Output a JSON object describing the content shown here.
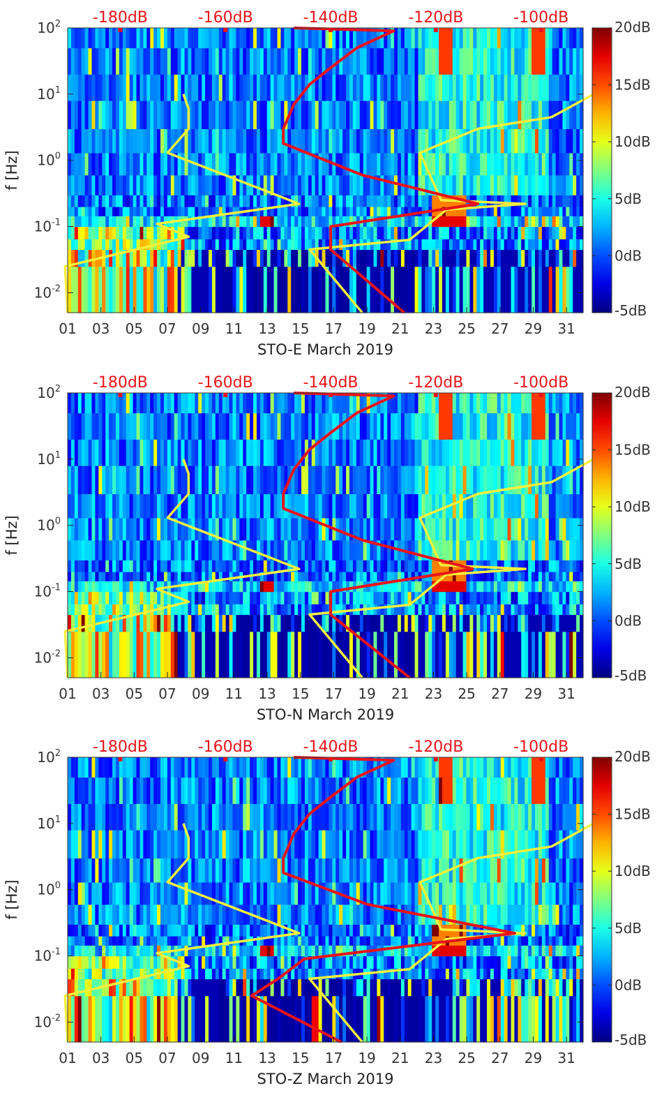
{
  "figure_title": "",
  "chart_data": [
    {
      "type": "heatmap",
      "component": "STO-E",
      "xlabel": "STO-E March 2019",
      "ylabel": "f [Hz]",
      "x_ticks": [
        "01",
        "03",
        "05",
        "07",
        "09",
        "11",
        "13",
        "15",
        "17",
        "19",
        "21",
        "23",
        "25",
        "27",
        "29",
        "31"
      ],
      "x_range_day": [
        1,
        32
      ],
      "y_scale": "log",
      "y_range_hz": [
        0.005,
        100
      ],
      "y_ticks": [
        {
          "base": "10",
          "exp": "2"
        },
        {
          "base": "10",
          "exp": "1"
        },
        {
          "base": "10",
          "exp": "0"
        },
        {
          "base": "10",
          "exp": "-1"
        },
        {
          "base": "10",
          "exp": "-2"
        }
      ],
      "top_axis_labels": [
        "-180dB",
        "-160dB",
        "-140dB",
        "-120dB",
        "-100dB"
      ],
      "top_axis_range_db": [
        -190,
        -92
      ],
      "colorbar_ticks": [
        "20dB",
        "15dB",
        "10dB",
        "5dB",
        "0dB",
        "-5dB"
      ],
      "colorbar_range_db": [
        -5,
        20
      ],
      "curves": [
        {
          "name": "yellow-noise-model",
          "color": "#f5f03c",
          "points_db_hz": [
            [
              -190,
              0.005
            ],
            [
              -190.5,
              0.025
            ],
            [
              -177,
              0.045
            ],
            [
              -167,
              0.07
            ],
            [
              -173,
              0.11
            ],
            [
              -146,
              0.22
            ],
            [
              -171,
              1.3
            ],
            [
              -167,
              3
            ],
            [
              -167,
              6
            ],
            [
              -168,
              10
            ]
          ]
        },
        {
          "name": "yellow-noise-model",
          "color": "#f5f03c",
          "points_db_hz": [
            [
              -134,
              0.005
            ],
            [
              -144,
              0.045
            ],
            [
              -125,
              0.063
            ],
            [
              -118,
              0.18
            ],
            [
              -110,
              0.2
            ],
            [
              -103,
              0.22
            ],
            [
              -119,
              0.25
            ],
            [
              -123,
              1.3
            ],
            [
              -112,
              3
            ],
            [
              -98,
              4.5
            ],
            [
              -90,
              10
            ]
          ]
        },
        {
          "name": "red-psd-curve",
          "color": "#e8141a",
          "points_db_hz": [
            [
              -126,
              0.005
            ],
            [
              -140,
              0.045
            ],
            [
              -140,
              0.1
            ],
            [
              -112,
              0.22
            ],
            [
              -134,
              0.6
            ],
            [
              -149,
              1.8
            ],
            [
              -149,
              3
            ],
            [
              -147,
              7
            ],
            [
              -144,
              14
            ],
            [
              -140,
              25
            ],
            [
              -135,
              50
            ],
            [
              -128,
              90
            ],
            [
              -147,
              100
            ]
          ]
        }
      ]
    },
    {
      "type": "heatmap",
      "component": "STO-N",
      "xlabel": "STO-N March 2019",
      "ylabel": "f [Hz]",
      "x_ticks": [
        "01",
        "03",
        "05",
        "07",
        "09",
        "11",
        "13",
        "15",
        "17",
        "19",
        "21",
        "23",
        "25",
        "27",
        "29",
        "31"
      ],
      "x_range_day": [
        1,
        32
      ],
      "y_scale": "log",
      "y_range_hz": [
        0.005,
        100
      ],
      "y_ticks": [
        {
          "base": "10",
          "exp": "2"
        },
        {
          "base": "10",
          "exp": "1"
        },
        {
          "base": "10",
          "exp": "0"
        },
        {
          "base": "10",
          "exp": "-1"
        },
        {
          "base": "10",
          "exp": "-2"
        }
      ],
      "top_axis_labels": [
        "-180dB",
        "-160dB",
        "-140dB",
        "-120dB",
        "-100dB"
      ],
      "top_axis_range_db": [
        -190,
        -92
      ],
      "colorbar_ticks": [
        "20dB",
        "15dB",
        "10dB",
        "5dB",
        "0dB",
        "-5dB"
      ],
      "colorbar_range_db": [
        -5,
        20
      ],
      "curves": [
        {
          "name": "yellow-noise-model",
          "color": "#f5f03c",
          "points_db_hz": [
            [
              -190,
              0.005
            ],
            [
              -190.5,
              0.025
            ],
            [
              -177,
              0.045
            ],
            [
              -167,
              0.07
            ],
            [
              -173,
              0.11
            ],
            [
              -146,
              0.22
            ],
            [
              -171,
              1.3
            ],
            [
              -167,
              3
            ],
            [
              -167,
              6
            ],
            [
              -168,
              10
            ]
          ]
        },
        {
          "name": "yellow-noise-model",
          "color": "#f5f03c",
          "points_db_hz": [
            [
              -134,
              0.005
            ],
            [
              -144,
              0.045
            ],
            [
              -125,
              0.063
            ],
            [
              -118,
              0.18
            ],
            [
              -110,
              0.2
            ],
            [
              -103,
              0.22
            ],
            [
              -119,
              0.25
            ],
            [
              -123,
              1.3
            ],
            [
              -112,
              3
            ],
            [
              -98,
              4.5
            ],
            [
              -90,
              10
            ]
          ]
        },
        {
          "name": "red-psd-curve",
          "color": "#e8141a",
          "points_db_hz": [
            [
              -125,
              0.005
            ],
            [
              -140,
              0.045
            ],
            [
              -140,
              0.1
            ],
            [
              -113,
              0.22
            ],
            [
              -134,
              0.6
            ],
            [
              -149,
              1.8
            ],
            [
              -149,
              3
            ],
            [
              -147,
              7
            ],
            [
              -144,
              14
            ],
            [
              -140,
              25
            ],
            [
              -135,
              50
            ],
            [
              -128,
              90
            ],
            [
              -147,
              100
            ]
          ]
        }
      ]
    },
    {
      "type": "heatmap",
      "component": "STO-Z",
      "xlabel": "STO-Z March 2019",
      "ylabel": "f [Hz]",
      "x_ticks": [
        "01",
        "03",
        "05",
        "07",
        "09",
        "11",
        "13",
        "15",
        "17",
        "19",
        "21",
        "23",
        "25",
        "27",
        "29",
        "31"
      ],
      "x_range_day": [
        1,
        32
      ],
      "y_scale": "log",
      "y_range_hz": [
        0.005,
        100
      ],
      "y_ticks": [
        {
          "base": "10",
          "exp": "2"
        },
        {
          "base": "10",
          "exp": "1"
        },
        {
          "base": "10",
          "exp": "0"
        },
        {
          "base": "10",
          "exp": "-1"
        },
        {
          "base": "10",
          "exp": "-2"
        }
      ],
      "top_axis_labels": [
        "-180dB",
        "-160dB",
        "-140dB",
        "-120dB",
        "-100dB"
      ],
      "top_axis_range_db": [
        -190,
        -92
      ],
      "colorbar_ticks": [
        "20dB",
        "15dB",
        "10dB",
        "5dB",
        "0dB",
        "-5dB"
      ],
      "colorbar_range_db": [
        -5,
        20
      ],
      "curves": [
        {
          "name": "yellow-noise-model",
          "color": "#f5f03c",
          "points_db_hz": [
            [
              -190,
              0.005
            ],
            [
              -190.5,
              0.025
            ],
            [
              -177,
              0.045
            ],
            [
              -167,
              0.07
            ],
            [
              -173,
              0.11
            ],
            [
              -146,
              0.22
            ],
            [
              -171,
              1.3
            ],
            [
              -167,
              3
            ],
            [
              -167,
              6
            ],
            [
              -168,
              10
            ]
          ]
        },
        {
          "name": "yellow-noise-model",
          "color": "#f5f03c",
          "points_db_hz": [
            [
              -134,
              0.005
            ],
            [
              -144,
              0.045
            ],
            [
              -125,
              0.063
            ],
            [
              -118,
              0.18
            ],
            [
              -110,
              0.2
            ],
            [
              -103,
              0.22
            ],
            [
              -119,
              0.25
            ],
            [
              -123,
              1.3
            ],
            [
              -112,
              3
            ],
            [
              -98,
              4.5
            ],
            [
              -90,
              10
            ]
          ]
        },
        {
          "name": "red-psd-curve",
          "color": "#e8141a",
          "points_db_hz": [
            [
              -138,
              0.005
            ],
            [
              -155,
              0.025
            ],
            [
              -150,
              0.045
            ],
            [
              -145,
              0.09
            ],
            [
              -105,
              0.22
            ],
            [
              -133,
              0.6
            ],
            [
              -149,
              1.8
            ],
            [
              -149,
              3
            ],
            [
              -147,
              7
            ],
            [
              -144,
              14
            ],
            [
              -140,
              25
            ],
            [
              -135,
              50
            ],
            [
              -128,
              90
            ],
            [
              -147,
              100
            ]
          ]
        }
      ]
    }
  ]
}
